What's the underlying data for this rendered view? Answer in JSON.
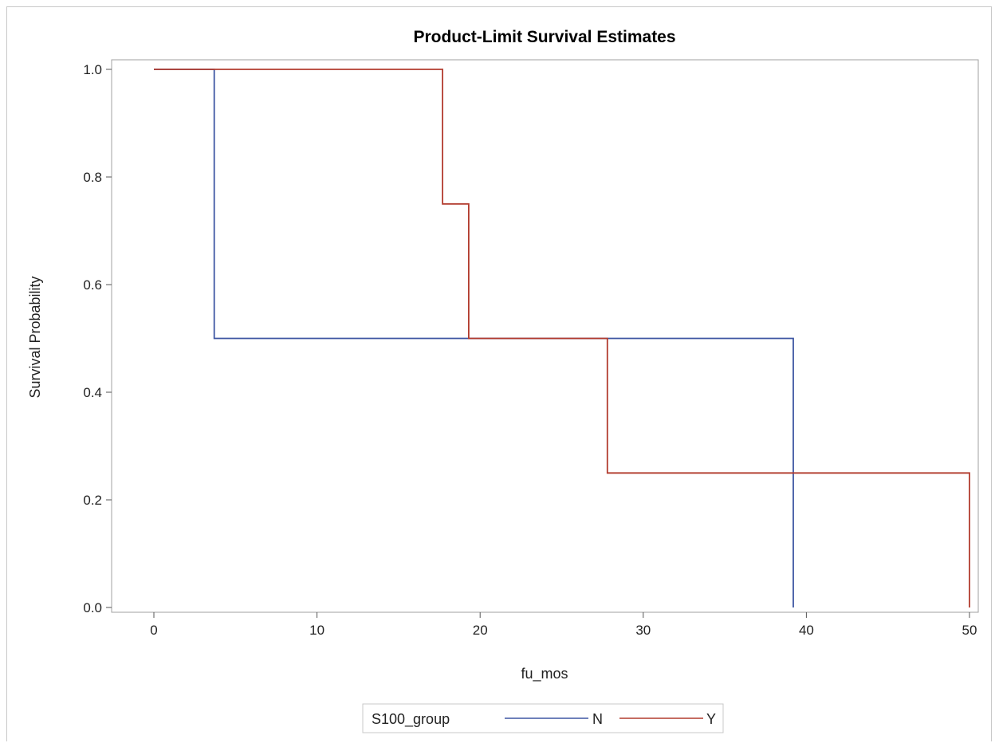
{
  "chart_data": {
    "type": "line",
    "step": true,
    "title": "Product-Limit Survival Estimates",
    "xlabel": "fu_mos",
    "ylabel": "Survival Probability",
    "xlim": [
      -2.5,
      50.5
    ],
    "ylim": [
      0,
      1.0
    ],
    "xticks": [
      "0",
      "10",
      "20",
      "30",
      "40",
      "50"
    ],
    "yticks": [
      "0.0",
      "0.2",
      "0.4",
      "0.6",
      "0.8",
      "1.0"
    ],
    "grid": false,
    "legend": {
      "title": "S100_group",
      "position": "bottom-center"
    },
    "series": [
      {
        "name": "N",
        "color": "#3f57a3",
        "points": [
          [
            0,
            1.0
          ],
          [
            3.7,
            1.0
          ],
          [
            3.7,
            0.5
          ],
          [
            39.2,
            0.5
          ],
          [
            39.2,
            0.0
          ]
        ]
      },
      {
        "name": "Y",
        "color": "#b23c2f",
        "points": [
          [
            0,
            1.0
          ],
          [
            17.7,
            1.0
          ],
          [
            17.7,
            0.75
          ],
          [
            19.3,
            0.75
          ],
          [
            19.3,
            0.5
          ],
          [
            27.8,
            0.5
          ],
          [
            27.8,
            0.25
          ],
          [
            50.0,
            0.25
          ],
          [
            50.0,
            0.0
          ]
        ]
      }
    ]
  }
}
